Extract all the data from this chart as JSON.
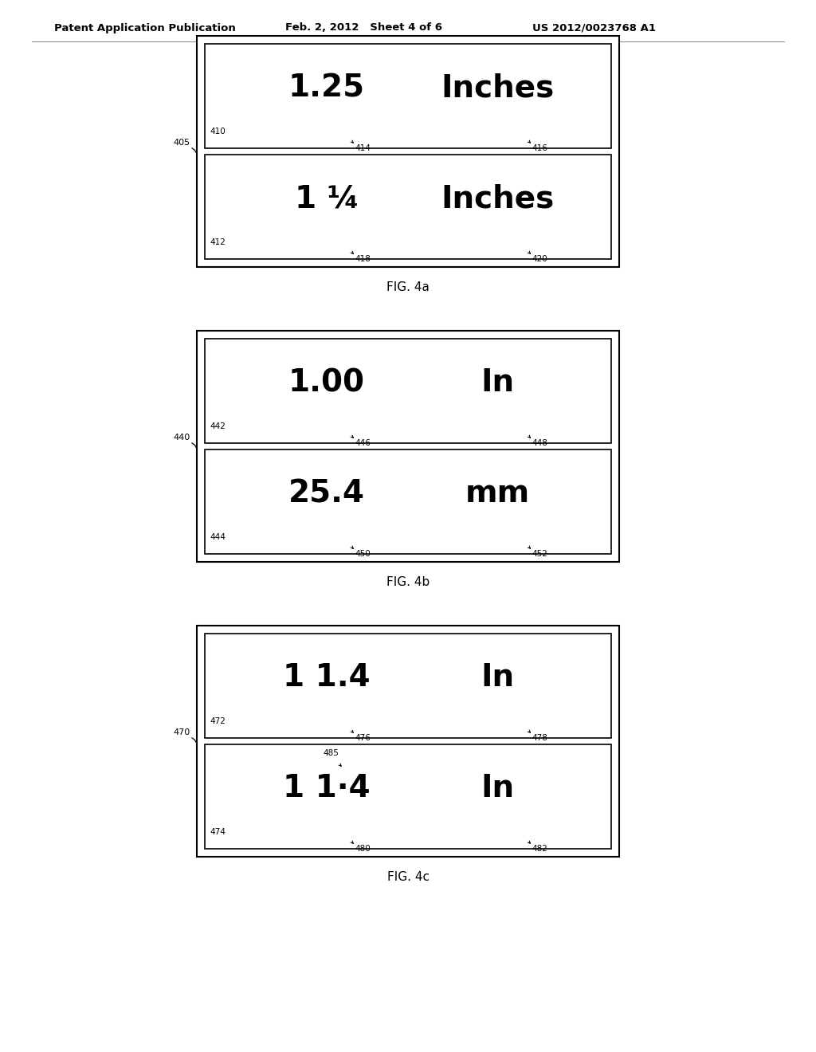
{
  "header_left": "Patent Application Publication",
  "header_mid": "Feb. 2, 2012   Sheet 4 of 6",
  "header_right": "US 2012/0023768 A1",
  "bg_color": "#ffffff",
  "figures": [
    {
      "label": "FIG. 4a",
      "outer_label": "405",
      "rows": [
        {
          "value_text": "1.25",
          "unit_text": "Inches",
          "ref_box": "410",
          "ref_value": "414",
          "ref_unit": "416"
        },
        {
          "value_text": "1 ¼",
          "unit_text": "Inches",
          "ref_box": "412",
          "ref_value": "418",
          "ref_unit": "420"
        }
      ]
    },
    {
      "label": "FIG. 4b",
      "outer_label": "440",
      "rows": [
        {
          "value_text": "1.00",
          "unit_text": "In",
          "ref_box": "442",
          "ref_value": "446",
          "ref_unit": "448"
        },
        {
          "value_text": "25.4",
          "unit_text": "mm",
          "ref_box": "444",
          "ref_value": "450",
          "ref_unit": "452"
        }
      ]
    },
    {
      "label": "FIG. 4c",
      "outer_label": "470",
      "rows": [
        {
          "value_text": "1 1.4",
          "unit_text": "In",
          "ref_box": "472",
          "ref_value": "476",
          "ref_unit": "478",
          "extra_label": null
        },
        {
          "value_text": "1 1·4",
          "unit_text": "In",
          "ref_box": "474",
          "ref_value": "480",
          "ref_unit": "482",
          "extra_label": "485"
        }
      ]
    }
  ]
}
